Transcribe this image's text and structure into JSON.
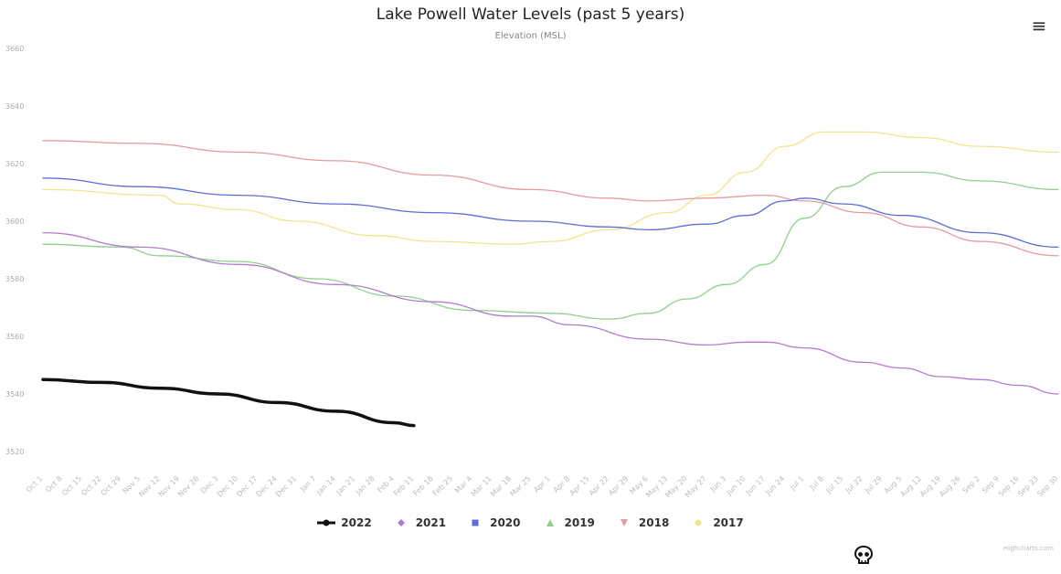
{
  "chart_data": {
    "type": "line",
    "title": "Lake Powell Water Levels (past 5 years)",
    "subtitle": "Elevation (MSL)",
    "ylim": [
      3520,
      3660
    ],
    "yticks": [
      3520,
      3540,
      3560,
      3580,
      3600,
      3620,
      3640,
      3660
    ],
    "grid": false,
    "legend_position": "bottom-center",
    "x_labels": [
      "Oct 1",
      "Oct 8",
      "Oct 15",
      "Oct 22",
      "Oct 29",
      "Nov 5",
      "Nov 12",
      "Nov 19",
      "Nov 26",
      "Dec 3",
      "Dec 10",
      "Dec 17",
      "Dec 24",
      "Dec 31",
      "Jan 7",
      "Jan 14",
      "Jan 21",
      "Jan 28",
      "Feb 4",
      "Feb 11",
      "Feb 18",
      "Feb 25",
      "Mar 4",
      "Mar 11",
      "Mar 18",
      "Mar 25",
      "Apr 1",
      "Apr 8",
      "Apr 15",
      "Apr 22",
      "Apr 29",
      "May 6",
      "May 13",
      "May 20",
      "May 27",
      "Jun 3",
      "Jun 10",
      "Jun 17",
      "Jun 24",
      "Jul 1",
      "Jul 8",
      "Jul 15",
      "Jul 22",
      "Jul 29",
      "Aug 5",
      "Aug 12",
      "Aug 19",
      "Aug 26",
      "Sep 2",
      "Sep 9",
      "Sep 16",
      "Sep 23",
      "Sep 30"
    ],
    "series": [
      {
        "name": "2022",
        "color": "#111111",
        "width": 3.5,
        "symbol": "circle",
        "points": [
          [
            0,
            3545
          ],
          [
            3,
            3544
          ],
          [
            6,
            3542
          ],
          [
            9,
            3540
          ],
          [
            12,
            3537
          ],
          [
            15,
            3534
          ],
          [
            18,
            3530
          ],
          [
            19,
            3529
          ]
        ]
      },
      {
        "name": "2021",
        "color": "#b07cd0",
        "width": 1.3,
        "symbol": "diamond",
        "points": [
          [
            0,
            3596
          ],
          [
            5,
            3591
          ],
          [
            10,
            3585
          ],
          [
            15,
            3578
          ],
          [
            20,
            3572
          ],
          [
            24,
            3567
          ],
          [
            25,
            3567
          ],
          [
            27,
            3564
          ],
          [
            31,
            3559
          ],
          [
            34,
            3557
          ],
          [
            36,
            3558
          ],
          [
            37,
            3558
          ],
          [
            39,
            3556
          ],
          [
            42,
            3551
          ],
          [
            44,
            3549
          ],
          [
            46,
            3546
          ],
          [
            48,
            3545
          ],
          [
            50,
            3543
          ],
          [
            52,
            3540
          ]
        ]
      },
      {
        "name": "2020",
        "color": "#5b6fd6",
        "width": 1.3,
        "symbol": "square",
        "points": [
          [
            0,
            3615
          ],
          [
            5,
            3612
          ],
          [
            10,
            3609
          ],
          [
            15,
            3606
          ],
          [
            20,
            3603
          ],
          [
            25,
            3600
          ],
          [
            29,
            3598
          ],
          [
            31,
            3597
          ],
          [
            34,
            3599
          ],
          [
            36,
            3602
          ],
          [
            38,
            3607
          ],
          [
            39,
            3608
          ],
          [
            41,
            3606
          ],
          [
            44,
            3602
          ],
          [
            48,
            3596
          ],
          [
            52,
            3591
          ]
        ]
      },
      {
        "name": "2019",
        "color": "#8fd08f",
        "width": 1.3,
        "symbol": "triangle",
        "points": [
          [
            0,
            3592
          ],
          [
            4,
            3591
          ],
          [
            6,
            3588
          ],
          [
            10,
            3586
          ],
          [
            14,
            3580
          ],
          [
            18,
            3574
          ],
          [
            22,
            3569
          ],
          [
            26,
            3568
          ],
          [
            29,
            3566
          ],
          [
            31,
            3568
          ],
          [
            33,
            3573
          ],
          [
            35,
            3578
          ],
          [
            37,
            3585
          ],
          [
            39,
            3601
          ],
          [
            41,
            3612
          ],
          [
            43,
            3617
          ],
          [
            45,
            3617
          ],
          [
            48,
            3614
          ],
          [
            52,
            3611
          ]
        ]
      },
      {
        "name": "2018",
        "color": "#e39aa3",
        "width": 1.3,
        "symbol": "triangle-down",
        "points": [
          [
            0,
            3628
          ],
          [
            5,
            3627
          ],
          [
            10,
            3624
          ],
          [
            15,
            3621
          ],
          [
            20,
            3616
          ],
          [
            25,
            3611
          ],
          [
            29,
            3608
          ],
          [
            31,
            3607
          ],
          [
            34,
            3608
          ],
          [
            37,
            3609
          ],
          [
            39,
            3607
          ],
          [
            42,
            3603
          ],
          [
            45,
            3598
          ],
          [
            48,
            3593
          ],
          [
            52,
            3588
          ]
        ]
      },
      {
        "name": "2017",
        "color": "#f4e38c",
        "width": 1.3,
        "symbol": "circle",
        "points": [
          [
            0,
            3611
          ],
          [
            6,
            3609
          ],
          [
            7,
            3606
          ],
          [
            10,
            3604
          ],
          [
            13,
            3600
          ],
          [
            17,
            3595
          ],
          [
            20,
            3593
          ],
          [
            24,
            3592
          ],
          [
            26,
            3593
          ],
          [
            29,
            3597
          ],
          [
            32,
            3603
          ],
          [
            34,
            3609
          ],
          [
            36,
            3617
          ],
          [
            38,
            3626
          ],
          [
            40,
            3631
          ],
          [
            42,
            3631
          ],
          [
            45,
            3629
          ],
          [
            48,
            3626
          ],
          [
            52,
            3624
          ]
        ]
      }
    ]
  },
  "credits": "Highcharts.com",
  "icons": {
    "menu": "hamburger-menu-icon",
    "skull": "skull-icon"
  }
}
